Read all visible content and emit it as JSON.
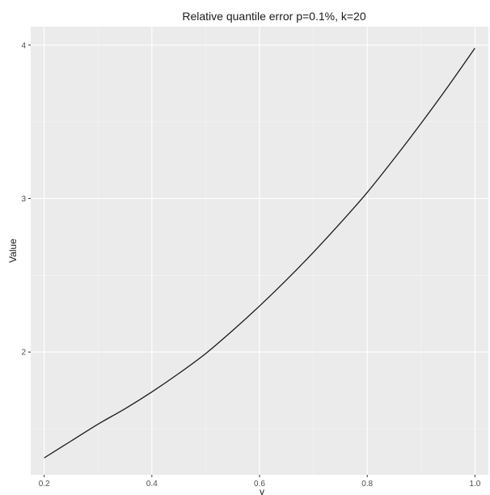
{
  "chart_data": {
    "type": "line",
    "title": "Relative quantile error p=0.1%, k=20",
    "xlabel": "γ",
    "ylabel": "Value",
    "xlim": [
      0.175,
      1.025
    ],
    "ylim": [
      1.2,
      4.12
    ],
    "x_ticks": [
      0.2,
      0.4,
      0.6,
      0.8,
      1.0
    ],
    "x_tick_labels": [
      "0.2",
      "0.4",
      "0.6",
      "0.8",
      "1.0"
    ],
    "y_ticks": [
      2,
      3,
      4
    ],
    "y_tick_labels": [
      "2",
      "3",
      "4"
    ],
    "x_minor_ticks": [
      0.3,
      0.5,
      0.7,
      0.9
    ],
    "y_minor_ticks": [
      1.5,
      2.5,
      3.5
    ],
    "grid": true,
    "legend": "none",
    "series": [
      {
        "color": "#1a1a1a",
        "x": [
          0.2,
          0.25,
          0.3,
          0.35,
          0.4,
          0.45,
          0.5,
          0.55,
          0.6,
          0.65,
          0.7,
          0.75,
          0.8,
          0.85,
          0.9,
          0.95,
          1.0
        ],
        "y": [
          1.31,
          1.42,
          1.53,
          1.63,
          1.74,
          1.86,
          1.99,
          2.14,
          2.3,
          2.47,
          2.65,
          2.84,
          3.04,
          3.26,
          3.49,
          3.73,
          3.98
        ]
      }
    ]
  },
  "colors": {
    "panel_background": "#ebebeb",
    "grid_major": "#ffffff",
    "grid_minor": "#f5f5f5",
    "axis_text": "#4d4d4d",
    "title_text": "#1a1a1a"
  }
}
